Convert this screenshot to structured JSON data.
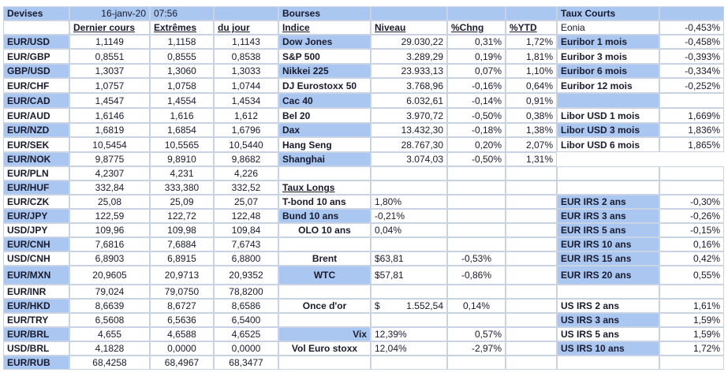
{
  "header": {
    "devises": "Devises",
    "date": "16-janv-20",
    "time": "07:56",
    "bourses": "Bourses",
    "taux_courts": "Taux Courts"
  },
  "colheads": {
    "dernier": "Dernier cours",
    "extremes": "Extrêmes",
    "dujour": "du jour",
    "indice": "Indice",
    "niveau": "Niveau",
    "chng": "%Chng",
    "ytd": "%YTD"
  },
  "fx": [
    [
      "EUR/USD",
      "1,1149",
      "1,1158",
      "1,1143"
    ],
    [
      "EUR/GBP",
      "0,8551",
      "0,8555",
      "0,8538"
    ],
    [
      "GBP/USD",
      "1,3037",
      "1,3060",
      "1,3033"
    ],
    [
      "EUR/CHF",
      "1,0757",
      "1,0758",
      "1,0744"
    ],
    [
      "EUR/CAD",
      "1,4547",
      "1,4554",
      "1,4534"
    ],
    [
      "EUR/AUD",
      "1,6146",
      "1,616",
      "1,612"
    ],
    [
      "EUR/NZD",
      "1,6819",
      "1,6854",
      "1,6796"
    ],
    [
      "EUR/SEK",
      "10,5454",
      "10,5565",
      "10,5440"
    ],
    [
      "EUR/NOK",
      "9,8775",
      "9,8910",
      "9,8682"
    ],
    [
      "EUR/PLN",
      "4,2307",
      "4,231",
      "4,226"
    ],
    [
      "EUR/HUF",
      "332,84",
      "333,380",
      "332,52"
    ],
    [
      "EUR/CZK",
      "25,08",
      "25,09",
      "25,07"
    ],
    [
      "EUR/JPY",
      "122,59",
      "122,72",
      "122,48"
    ],
    [
      "USD/JPY",
      "109,96",
      "109,98",
      "109,84"
    ],
    [
      "EUR/CNH",
      "7,6816",
      "7,6884",
      "7,6743"
    ],
    [
      "USD/CNH",
      "6,8903",
      "6,8915",
      "6,8800"
    ],
    [
      "EUR/MXN",
      "20,9605",
      "20,9713",
      "20,9352"
    ],
    [
      "EUR/INR",
      "79,024",
      "79,0750",
      "78,8200"
    ],
    [
      "EUR/HKD",
      "8,6639",
      "8,6727",
      "8,6586"
    ],
    [
      "EUR/TRY",
      "6,5608",
      "6,5636",
      "6,5400"
    ],
    [
      "EUR/BRL",
      "4,655",
      "4,6588",
      "4,6525"
    ],
    [
      "USD/BRL",
      "4,1828",
      "0,0000",
      "0,0000"
    ],
    [
      "EUR/RUB",
      "68,4258",
      "68,4967",
      "68,3477"
    ]
  ],
  "indices": [
    [
      "Dow Jones",
      "29.030,22",
      "0,31%",
      "1,72%"
    ],
    [
      "S&P 500",
      "3.289,29",
      "0,19%",
      "1,81%"
    ],
    [
      "Nikkei 225",
      "23.933,13",
      "0,07%",
      "1,10%"
    ],
    [
      "DJ Eurostoxx 50",
      "3.768,96",
      "-0,16%",
      "0,64%"
    ],
    [
      "Cac 40",
      "6.032,61",
      "-0,14%",
      "0,91%"
    ],
    [
      "Bel 20",
      "3.970,72",
      "-0,50%",
      "0,38%"
    ],
    [
      "Dax",
      "13.432,30",
      "-0,18%",
      "1,38%"
    ],
    [
      "Hang Seng",
      "28.767,30",
      "0,20%",
      "2,07%"
    ],
    [
      "Shanghai",
      "3.074,03",
      "-0,50%",
      "1,31%"
    ]
  ],
  "taux_longs": {
    "title": "Taux Longs",
    "rows": [
      [
        "T-bond 10 ans",
        "1,80%"
      ],
      [
        "Bund 10 ans",
        "-0,21%"
      ],
      [
        "OLO 10 ans",
        "0,04%"
      ]
    ]
  },
  "commodities": [
    [
      "Brent",
      "$63,81",
      "-0,53%"
    ],
    [
      "WTC",
      "$57,81",
      "-0,86%"
    ]
  ],
  "gold": {
    "label": "Once d'or",
    "currency": "$",
    "value": "1.552,54",
    "chng": "0,14%"
  },
  "vol": [
    [
      "Vix",
      "12,39%",
      "0,57%"
    ],
    [
      "Vol Euro stoxx",
      "12,04%",
      "-2,97%"
    ]
  ],
  "short_rates": [
    [
      "Eonia",
      "-0,453%"
    ],
    [
      "Euribor 1 mois",
      "-0,458%"
    ],
    [
      "Euribor 3 mois",
      "-0,393%"
    ],
    [
      "Euribor 6 mois",
      "-0,334%"
    ],
    [
      "Euribor 12 mois",
      "-0,252%"
    ],
    [
      "",
      ""
    ],
    [
      "Libor USD 1 mois",
      "1,669%"
    ],
    [
      "Libor USD 3 mois",
      "1,836%"
    ],
    [
      "Libor USD 6 mois",
      "1,865%"
    ]
  ],
  "eur_irs": [
    [
      "EUR IRS 2 ans",
      "-0,30%"
    ],
    [
      "EUR IRS 3 ans",
      "-0,26%"
    ],
    [
      "EUR IRS 5 ans",
      "-0,15%"
    ],
    [
      "EUR IRS 10 ans",
      "0,16%"
    ],
    [
      "EUR IRS 15 ans",
      "0,42%"
    ],
    [
      "EUR IRS 20 ans",
      "0,55%"
    ]
  ],
  "us_irs": [
    [
      "US IRS 2 ans",
      "1,61%"
    ],
    [
      "US IRS 3 ans",
      "1,59%"
    ],
    [
      "US IRS 5 ans",
      "1,59%"
    ],
    [
      "US IRS 10 ans",
      "1,72%"
    ]
  ]
}
